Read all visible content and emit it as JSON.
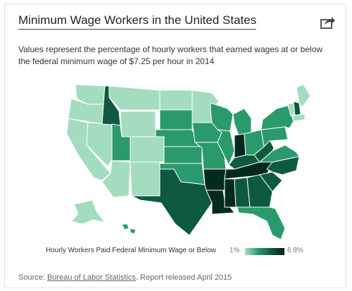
{
  "header": {
    "title": "Minimum Wage Workers in the United States",
    "share_icon": "share-icon"
  },
  "description": "Values represent the percentage of hourly workers that earned wages at or below the federal minimum wage of $7.25 per hour in 2014",
  "legend": {
    "label": "Hourly Workers Paid Federal Minimum Wage or Below",
    "min": "1%",
    "max": "6.8%",
    "color_low": "#a8e0c4",
    "color_high": "#03211a"
  },
  "footer": {
    "prefix": "Source: ",
    "link": "Bureau of Labor Statistics",
    "suffix": ". Report released April 2015"
  },
  "map_data": {
    "type": "choropleth",
    "region": "United States",
    "shading_levels": {
      "WA": "light",
      "OR": "light",
      "CA": "light",
      "NV": "light",
      "ID": "dark",
      "MT": "light",
      "WY": "light",
      "UT": "medium",
      "CO": "light",
      "AZ": "light",
      "NM": "light",
      "ND": "light",
      "SD": "medium",
      "NE": "medium",
      "KS": "medium",
      "OK": "medium",
      "TX": "dark",
      "MN": "light",
      "IA": "medium",
      "MO": "medium",
      "AR": "darkest",
      "LA": "darkest",
      "WI": "medium",
      "IL": "medium",
      "MS": "darkest",
      "MI": "medium",
      "IN": "darkest",
      "OH": "medium",
      "KY": "dark",
      "TN": "darkest",
      "AL": "dark",
      "GA": "dark",
      "FL": "medium",
      "SC": "dark",
      "NC": "dark",
      "VA": "medium",
      "WV": "dark",
      "PA": "medium",
      "NY": "medium",
      "ME": "light",
      "NH": "dark",
      "VT": "light",
      "MA": "light",
      "AK": "light",
      "HI": "medium"
    },
    "colors": {
      "lightest": "#bfe8d3",
      "light": "#a3dcbf",
      "medium": "#2a9a6c",
      "dark": "#0d5a40",
      "darkest": "#042a1f"
    }
  }
}
